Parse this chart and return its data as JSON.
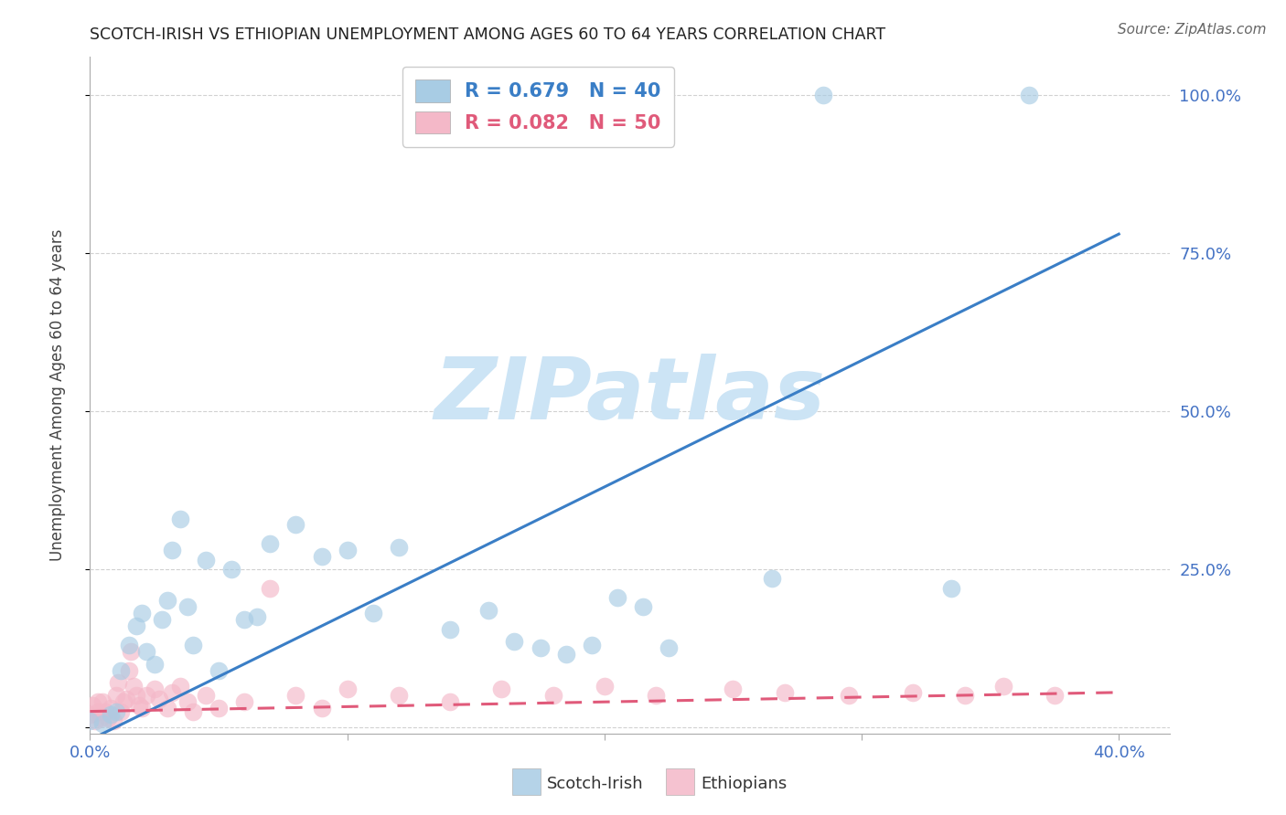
{
  "title": "SCOTCH-IRISH VS ETHIOPIAN UNEMPLOYMENT AMONG AGES 60 TO 64 YEARS CORRELATION CHART",
  "source": "Source: ZipAtlas.com",
  "ylabel": "Unemployment Among Ages 60 to 64 years",
  "xlim": [
    0.0,
    0.42
  ],
  "ylim": [
    -0.01,
    1.06
  ],
  "scotch_irish_R": 0.679,
  "scotch_irish_N": 40,
  "ethiopian_R": 0.082,
  "ethiopian_N": 50,
  "scotch_irish_color": "#a8cce4",
  "ethiopian_color": "#f4b8c8",
  "scotch_irish_line_color": "#3a7ec6",
  "ethiopian_line_color": "#e05a7a",
  "scotch_irish_scatter_x": [
    0.0,
    0.005,
    0.008,
    0.01,
    0.012,
    0.015,
    0.018,
    0.02,
    0.022,
    0.025,
    0.028,
    0.03,
    0.032,
    0.035,
    0.038,
    0.04,
    0.045,
    0.05,
    0.055,
    0.06,
    0.065,
    0.07,
    0.08,
    0.09,
    0.1,
    0.11,
    0.12,
    0.14,
    0.155,
    0.165,
    0.175,
    0.185,
    0.195,
    0.205,
    0.215,
    0.225,
    0.265,
    0.285,
    0.335,
    0.365
  ],
  "scotch_irish_scatter_y": [
    0.01,
    0.005,
    0.02,
    0.025,
    0.09,
    0.13,
    0.16,
    0.18,
    0.12,
    0.1,
    0.17,
    0.2,
    0.28,
    0.33,
    0.19,
    0.13,
    0.265,
    0.09,
    0.25,
    0.17,
    0.175,
    0.29,
    0.32,
    0.27,
    0.28,
    0.18,
    0.285,
    0.155,
    0.185,
    0.135,
    0.125,
    0.115,
    0.13,
    0.205,
    0.19,
    0.125,
    0.235,
    1.0,
    0.22,
    1.0
  ],
  "ethiopian_scatter_x": [
    0.0,
    0.001,
    0.002,
    0.003,
    0.003,
    0.004,
    0.005,
    0.006,
    0.007,
    0.008,
    0.009,
    0.01,
    0.011,
    0.012,
    0.013,
    0.014,
    0.015,
    0.016,
    0.017,
    0.018,
    0.019,
    0.02,
    0.022,
    0.025,
    0.027,
    0.03,
    0.032,
    0.035,
    0.038,
    0.04,
    0.045,
    0.05,
    0.06,
    0.07,
    0.08,
    0.09,
    0.1,
    0.12,
    0.14,
    0.16,
    0.18,
    0.2,
    0.22,
    0.25,
    0.27,
    0.295,
    0.32,
    0.34,
    0.355,
    0.375
  ],
  "ethiopian_scatter_y": [
    0.02,
    0.035,
    0.01,
    0.025,
    0.04,
    0.015,
    0.04,
    0.025,
    0.015,
    0.03,
    0.01,
    0.05,
    0.07,
    0.025,
    0.04,
    0.045,
    0.09,
    0.12,
    0.065,
    0.05,
    0.035,
    0.03,
    0.05,
    0.06,
    0.045,
    0.03,
    0.055,
    0.065,
    0.04,
    0.025,
    0.05,
    0.03,
    0.04,
    0.22,
    0.05,
    0.03,
    0.06,
    0.05,
    0.04,
    0.06,
    0.05,
    0.065,
    0.05,
    0.06,
    0.055,
    0.05,
    0.055,
    0.05,
    0.065,
    0.05
  ],
  "si_line_x": [
    0.0,
    0.4
  ],
  "si_line_y": [
    -0.02,
    0.78
  ],
  "et_line_x": [
    0.0,
    0.4
  ],
  "et_line_y": [
    0.025,
    0.055
  ],
  "watermark_text": "ZIPatlas",
  "watermark_color": "#cce4f5",
  "background_color": "#ffffff",
  "grid_color": "#cccccc",
  "tick_color": "#4472c4",
  "title_color": "#222222",
  "source_color": "#666666"
}
